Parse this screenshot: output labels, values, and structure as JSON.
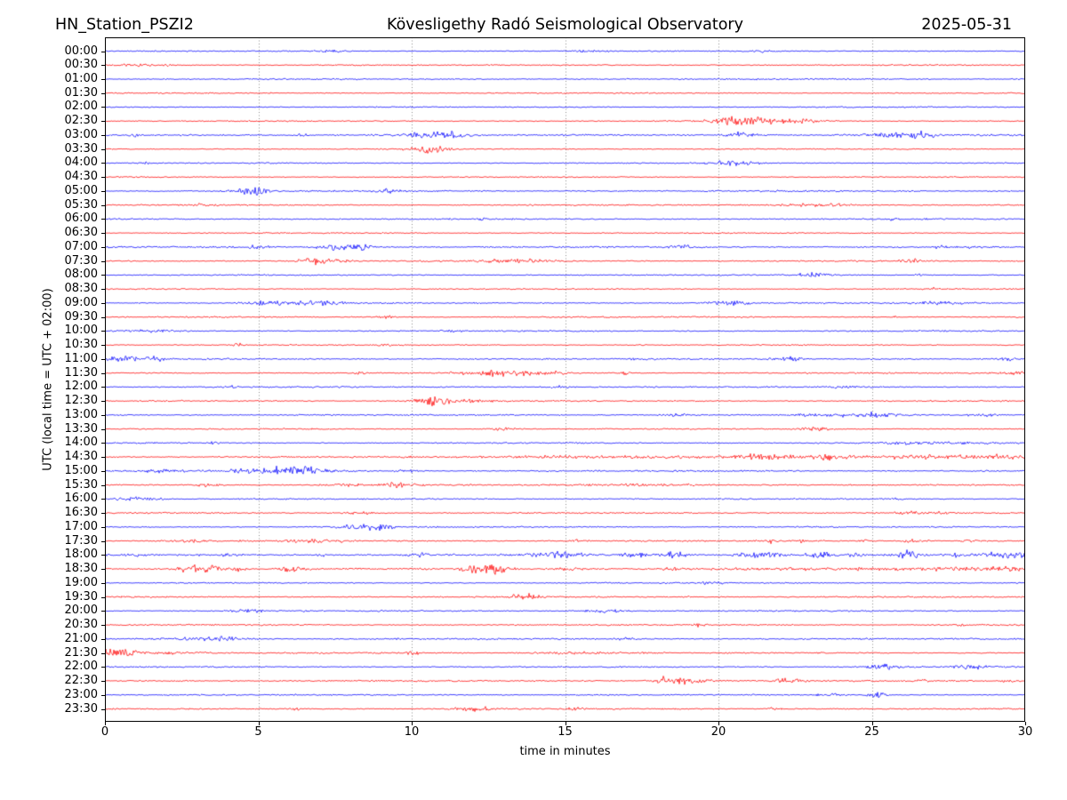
{
  "header": {
    "station": "HN_Station_PSZI2",
    "observatory": "Kövesligethy Radó Seismological Observatory",
    "date": "2025-05-31"
  },
  "axes": {
    "x_label": "time in minutes",
    "y_label": "UTC (local time = UTC + 02:00)",
    "x_ticks": [
      0,
      5,
      10,
      15,
      20,
      25,
      30
    ],
    "x_range": [
      0,
      30
    ],
    "grid_minutes": [
      5,
      10,
      15,
      20,
      25
    ]
  },
  "chart_data": {
    "type": "line",
    "subtype": "helicorder-seismogram",
    "minutes_per_row": 30,
    "row_interval": "00:30",
    "legend_position": "none",
    "grid": "vertical-dotted",
    "colors": {
      "b": "#0000ff",
      "r": "#ff0000"
    },
    "event_format": "[center_minute, half_width_minutes, peak_amplitude_px]",
    "rows": [
      {
        "t": "00:00",
        "c": "b",
        "n": 0.6,
        "e": [
          [
            7.4,
            0.3,
            1.2
          ],
          [
            15.8,
            0.4,
            0.8
          ],
          [
            21.5,
            0.4,
            1.0
          ]
        ]
      },
      {
        "t": "00:30",
        "c": "r",
        "n": 0.6,
        "e": [
          [
            1.3,
            0.6,
            1.0
          ],
          [
            7.9,
            0.3,
            1.0
          ]
        ]
      },
      {
        "t": "01:00",
        "c": "b",
        "n": 0.7,
        "e": []
      },
      {
        "t": "01:30",
        "c": "r",
        "n": 0.6,
        "e": []
      },
      {
        "t": "02:00",
        "c": "b",
        "n": 0.6,
        "e": []
      },
      {
        "t": "02:30",
        "c": "r",
        "n": 0.6,
        "e": [
          [
            20.5,
            0.5,
            5.0
          ],
          [
            21.6,
            1.0,
            2.0
          ],
          [
            22.8,
            0.4,
            1.2
          ]
        ]
      },
      {
        "t": "03:00",
        "c": "b",
        "n": 0.8,
        "e": [
          [
            1.0,
            0.07,
            4.0
          ],
          [
            6.4,
            0.15,
            1.5
          ],
          [
            10.4,
            0.8,
            2.5
          ],
          [
            11.3,
            0.3,
            2.0
          ],
          [
            20.7,
            0.35,
            3.5
          ],
          [
            25.8,
            0.9,
            1.8
          ],
          [
            26.6,
            0.4,
            1.5
          ]
        ]
      },
      {
        "t": "03:30",
        "c": "r",
        "n": 0.6,
        "e": [
          [
            10.6,
            0.45,
            4.5
          ]
        ]
      },
      {
        "t": "04:00",
        "c": "b",
        "n": 0.6,
        "e": [
          [
            1.3,
            0.08,
            1.5
          ],
          [
            20.5,
            0.5,
            2.5
          ]
        ]
      },
      {
        "t": "04:30",
        "c": "r",
        "n": 0.6,
        "e": []
      },
      {
        "t": "05:00",
        "c": "b",
        "n": 0.8,
        "e": [
          [
            4.7,
            0.4,
            3.0
          ],
          [
            5.1,
            0.2,
            2.0
          ],
          [
            9.3,
            0.25,
            2.0
          ]
        ]
      },
      {
        "t": "05:30",
        "c": "r",
        "n": 0.7,
        "e": [
          [
            3.2,
            0.25,
            1.2
          ],
          [
            22.6,
            0.6,
            1.2
          ],
          [
            23.8,
            0.5,
            1.2
          ]
        ]
      },
      {
        "t": "06:00",
        "c": "b",
        "n": 0.7,
        "e": [
          [
            12.4,
            0.2,
            1.5
          ],
          [
            25.7,
            0.1,
            1.5
          ]
        ]
      },
      {
        "t": "06:30",
        "c": "r",
        "n": 0.6,
        "e": []
      },
      {
        "t": "07:00",
        "c": "b",
        "n": 0.8,
        "e": [
          [
            4.9,
            0.3,
            1.5
          ],
          [
            7.7,
            0.5,
            3.0
          ],
          [
            8.4,
            0.3,
            2.5
          ],
          [
            18.8,
            0.35,
            2.0
          ],
          [
            27.2,
            0.2,
            1.2
          ],
          [
            28.2,
            0.08,
            3.0
          ]
        ]
      },
      {
        "t": "07:30",
        "c": "r",
        "n": 0.7,
        "e": [
          [
            7.0,
            0.5,
            3.5
          ],
          [
            13.5,
            0.8,
            2.0
          ],
          [
            26.3,
            0.25,
            1.5
          ]
        ]
      },
      {
        "t": "08:00",
        "c": "b",
        "n": 0.6,
        "e": [
          [
            23.1,
            0.4,
            3.0
          ],
          [
            26.5,
            0.1,
            1.5
          ]
        ]
      },
      {
        "t": "08:30",
        "c": "r",
        "n": 0.6,
        "e": [
          [
            27.0,
            0.08,
            1.2
          ]
        ]
      },
      {
        "t": "09:00",
        "c": "b",
        "n": 0.7,
        "e": [
          [
            5.2,
            0.4,
            2.5
          ],
          [
            6.6,
            0.8,
            2.0
          ],
          [
            7.4,
            0.3,
            1.5
          ],
          [
            20.3,
            0.4,
            3.0
          ],
          [
            27.4,
            0.8,
            1.5
          ]
        ]
      },
      {
        "t": "09:30",
        "c": "r",
        "n": 0.7,
        "e": [
          [
            9.2,
            0.2,
            1.5
          ],
          [
            25.8,
            0.1,
            1.0
          ]
        ]
      },
      {
        "t": "10:00",
        "c": "b",
        "n": 0.7,
        "e": [
          [
            1.5,
            0.6,
            1.3
          ],
          [
            11.2,
            0.2,
            1.3
          ]
        ]
      },
      {
        "t": "10:30",
        "c": "r",
        "n": 0.6,
        "e": [
          [
            4.3,
            0.1,
            2.5
          ],
          [
            9.2,
            0.2,
            1.5
          ]
        ]
      },
      {
        "t": "11:00",
        "c": "b",
        "n": 0.8,
        "e": [
          [
            0.7,
            0.7,
            2.5
          ],
          [
            1.6,
            0.3,
            1.5
          ],
          [
            22.3,
            0.35,
            2.5
          ],
          [
            29.4,
            0.2,
            1.5
          ]
        ]
      },
      {
        "t": "11:30",
        "c": "r",
        "n": 0.7,
        "e": [
          [
            8.3,
            0.1,
            2.0
          ],
          [
            12.7,
            0.8,
            2.5
          ],
          [
            14.3,
            0.5,
            1.5
          ],
          [
            17.0,
            0.1,
            3.0
          ],
          [
            29.6,
            0.3,
            1.8
          ]
        ]
      },
      {
        "t": "12:00",
        "c": "b",
        "n": 0.7,
        "e": [
          [
            4.1,
            0.15,
            1.5
          ],
          [
            14.8,
            0.3,
            1.2
          ],
          [
            24.3,
            0.5,
            1.3
          ]
        ]
      },
      {
        "t": "12:30",
        "c": "r",
        "n": 0.7,
        "e": [
          [
            10.8,
            0.45,
            4.5
          ],
          [
            12.0,
            0.5,
            1.5
          ]
        ]
      },
      {
        "t": "13:00",
        "c": "b",
        "n": 0.7,
        "e": [
          [
            18.7,
            0.4,
            1.5
          ],
          [
            23.1,
            0.4,
            1.3
          ],
          [
            24.9,
            0.7,
            2.2
          ],
          [
            28.6,
            0.4,
            1.3
          ]
        ]
      },
      {
        "t": "13:30",
        "c": "r",
        "n": 0.6,
        "e": [
          [
            12.9,
            0.4,
            1.2
          ],
          [
            23.2,
            0.35,
            2.5
          ]
        ]
      },
      {
        "t": "14:00",
        "c": "b",
        "n": 0.7,
        "e": [
          [
            3.6,
            0.1,
            2.0
          ],
          [
            26.8,
            1.2,
            1.2
          ]
        ]
      },
      {
        "t": "14:30",
        "c": "r",
        "n": 0.8,
        "e": [
          [
            14.5,
            1.5,
            1.2
          ],
          [
            18.0,
            1.0,
            1.2
          ],
          [
            21.3,
            0.8,
            2.2
          ],
          [
            23.6,
            0.7,
            2.4
          ],
          [
            26.8,
            1.0,
            2.2
          ],
          [
            29.3,
            0.8,
            2.4
          ]
        ]
      },
      {
        "t": "15:00",
        "c": "b",
        "n": 0.8,
        "e": [
          [
            1.8,
            0.4,
            1.5
          ],
          [
            4.8,
            0.8,
            2.0
          ],
          [
            5.9,
            0.8,
            2.5
          ],
          [
            6.8,
            0.5,
            2.5
          ],
          [
            9.9,
            0.3,
            1.3
          ]
        ]
      },
      {
        "t": "15:30",
        "c": "r",
        "n": 0.7,
        "e": [
          [
            3.3,
            0.3,
            1.5
          ],
          [
            7.8,
            0.5,
            1.3
          ],
          [
            9.5,
            0.4,
            2.2
          ],
          [
            17.5,
            1.5,
            1.0
          ]
        ]
      },
      {
        "t": "16:00",
        "c": "b",
        "n": 0.7,
        "e": [
          [
            0.9,
            0.6,
            2.2
          ],
          [
            25.8,
            0.12,
            1.8
          ]
        ]
      },
      {
        "t": "16:30",
        "c": "r",
        "n": 0.7,
        "e": [
          [
            8.3,
            0.4,
            1.2
          ],
          [
            26.5,
            0.8,
            1.2
          ]
        ]
      },
      {
        "t": "17:00",
        "c": "b",
        "n": 0.7,
        "e": [
          [
            8.3,
            0.5,
            2.8
          ],
          [
            9.0,
            0.3,
            2.2
          ]
        ]
      },
      {
        "t": "17:30",
        "c": "r",
        "n": 0.8,
        "e": [
          [
            2.8,
            0.4,
            1.5
          ],
          [
            6.8,
            0.8,
            1.2
          ],
          [
            15.5,
            0.2,
            1.5
          ],
          [
            21.7,
            0.1,
            2.0
          ],
          [
            22.7,
            0.1,
            1.8
          ],
          [
            24.8,
            0.1,
            1.8
          ],
          [
            26.4,
            0.3,
            1.5
          ],
          [
            28.2,
            0.2,
            1.3
          ]
        ]
      },
      {
        "t": "18:00",
        "c": "b",
        "n": 1.0,
        "e": [
          [
            1.0,
            0.1,
            1.5
          ],
          [
            4.0,
            0.15,
            1.5
          ],
          [
            7.1,
            0.15,
            1.5
          ],
          [
            10.2,
            0.2,
            2.0
          ],
          [
            14.7,
            0.5,
            3.0
          ],
          [
            17.3,
            0.4,
            2.0
          ],
          [
            18.6,
            0.3,
            4.0
          ],
          [
            20.7,
            0.2,
            2.0
          ],
          [
            21.5,
            0.4,
            3.5
          ],
          [
            23.3,
            0.3,
            3.5
          ],
          [
            24.5,
            0.2,
            2.0
          ],
          [
            26.2,
            0.25,
            4.5
          ],
          [
            27.7,
            0.2,
            2.0
          ],
          [
            29.2,
            0.4,
            3.0
          ],
          [
            29.9,
            0.2,
            2.5
          ]
        ]
      },
      {
        "t": "18:30",
        "c": "r",
        "n": 0.9,
        "e": [
          [
            2.8,
            0.4,
            4.5
          ],
          [
            3.5,
            0.3,
            2.5
          ],
          [
            4.4,
            0.2,
            2.0
          ],
          [
            6.1,
            0.25,
            3.5
          ],
          [
            12.3,
            0.4,
            4.5
          ],
          [
            13.0,
            0.3,
            2.5
          ],
          [
            15.1,
            0.3,
            1.5
          ],
          [
            18.5,
            0.2,
            1.5
          ],
          [
            24.0,
            4.0,
            0.8
          ],
          [
            27.8,
            0.5,
            1.5
          ],
          [
            29.4,
            0.5,
            2.5
          ]
        ]
      },
      {
        "t": "19:00",
        "c": "b",
        "n": 0.6,
        "e": [
          [
            19.8,
            0.3,
            1.0
          ]
        ]
      },
      {
        "t": "19:30",
        "c": "r",
        "n": 0.7,
        "e": [
          [
            13.7,
            0.35,
            3.0
          ],
          [
            19.0,
            0.1,
            1.2
          ]
        ]
      },
      {
        "t": "20:00",
        "c": "b",
        "n": 0.7,
        "e": [
          [
            4.6,
            0.4,
            1.3
          ],
          [
            16.3,
            0.4,
            2.2
          ]
        ]
      },
      {
        "t": "20:30",
        "c": "r",
        "n": 0.7,
        "e": [
          [
            19.4,
            0.15,
            1.8
          ],
          [
            27.9,
            0.1,
            1.3
          ]
        ]
      },
      {
        "t": "21:00",
        "c": "b",
        "n": 0.8,
        "e": [
          [
            3.4,
            0.8,
            2.2
          ],
          [
            17.0,
            0.2,
            1.3
          ]
        ]
      },
      {
        "t": "21:30",
        "c": "r",
        "n": 0.7,
        "e": [
          [
            0.4,
            0.4,
            4.5
          ],
          [
            2.3,
            0.8,
            1.3
          ],
          [
            10.0,
            0.2,
            1.5
          ],
          [
            15.5,
            1.2,
            1.2
          ]
        ]
      },
      {
        "t": "22:00",
        "c": "b",
        "n": 0.7,
        "e": [
          [
            1.7,
            0.1,
            1.3
          ],
          [
            25.4,
            0.5,
            2.2
          ],
          [
            28.3,
            0.4,
            2.2
          ]
        ]
      },
      {
        "t": "22:30",
        "c": "r",
        "n": 0.8,
        "e": [
          [
            18.5,
            0.45,
            4.5
          ],
          [
            19.5,
            0.4,
            2.0
          ],
          [
            22.3,
            0.3,
            2.5
          ],
          [
            26.6,
            0.2,
            1.5
          ],
          [
            29.5,
            0.2,
            1.5
          ]
        ]
      },
      {
        "t": "23:00",
        "c": "b",
        "n": 0.7,
        "e": [
          [
            23.6,
            0.3,
            1.3
          ],
          [
            25.2,
            0.18,
            4.0
          ]
        ]
      },
      {
        "t": "23:30",
        "c": "r",
        "n": 0.7,
        "e": [
          [
            6.2,
            0.15,
            1.2
          ],
          [
            12.0,
            0.4,
            2.5
          ],
          [
            15.3,
            0.2,
            1.3
          ],
          [
            21.8,
            0.15,
            1.5
          ]
        ]
      }
    ]
  }
}
